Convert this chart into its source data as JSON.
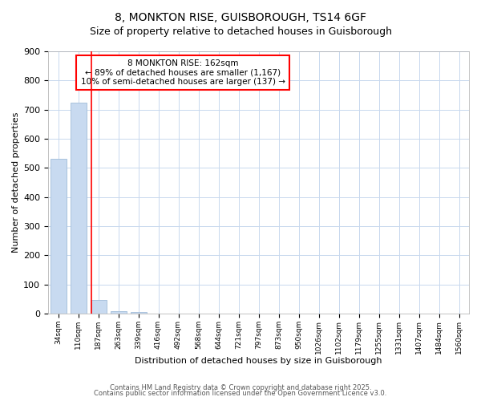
{
  "title_line1": "8, MONKTON RISE, GUISBOROUGH, TS14 6GF",
  "title_line2": "Size of property relative to detached houses in Guisborough",
  "xlabel": "Distribution of detached houses by size in Guisborough",
  "ylabel": "Number of detached properties",
  "categories": [
    "34sqm",
    "110sqm",
    "187sqm",
    "263sqm",
    "339sqm",
    "416sqm",
    "492sqm",
    "568sqm",
    "644sqm",
    "721sqm",
    "797sqm",
    "873sqm",
    "950sqm",
    "1026sqm",
    "1102sqm",
    "1179sqm",
    "1255sqm",
    "1331sqm",
    "1407sqm",
    "1484sqm",
    "1560sqm"
  ],
  "values": [
    530,
    725,
    47,
    8,
    5,
    0,
    0,
    0,
    0,
    0,
    0,
    0,
    0,
    0,
    0,
    0,
    0,
    0,
    0,
    0,
    0
  ],
  "bar_color": "#c8daf0",
  "bar_edge_color": "#a0bcd8",
  "grid_color": "#c8d8ee",
  "background_color": "#ffffff",
  "annotation_text": "8 MONKTON RISE: 162sqm\n← 89% of detached houses are smaller (1,167)\n10% of semi-detached houses are larger (137) →",
  "ylim": [
    0,
    900
  ],
  "yticks": [
    0,
    100,
    200,
    300,
    400,
    500,
    600,
    700,
    800,
    900
  ],
  "red_line_x": 1.68,
  "footer_line1": "Contains HM Land Registry data © Crown copyright and database right 2025.",
  "footer_line2": "Contains public sector information licensed under the Open Government Licence v3.0."
}
